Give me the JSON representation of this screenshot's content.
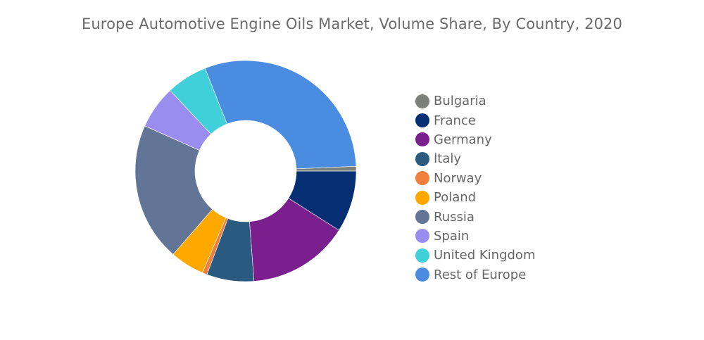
{
  "chart_data": {
    "type": "pie",
    "title": "Europe Automotive Engine Oils Market, Volume Share, By Country, 2020",
    "donut": true,
    "legend_position": "right",
    "categories": [
      "Bulgaria",
      "France",
      "Germany",
      "Italy",
      "Norway",
      "Poland",
      "Russia",
      "Spain",
      "United Kingdom",
      "Rest of Europe"
    ],
    "values": [
      0.7,
      9.0,
      14.8,
      6.9,
      0.7,
      5.0,
      20.3,
      6.3,
      6.0,
      30.3
    ],
    "colors": [
      "#7c8079",
      "#062e73",
      "#7b1f8f",
      "#2b5a80",
      "#f07f3c",
      "#ffa800",
      "#637597",
      "#9b8df0",
      "#3fd0d9",
      "#4a8de0"
    ]
  }
}
